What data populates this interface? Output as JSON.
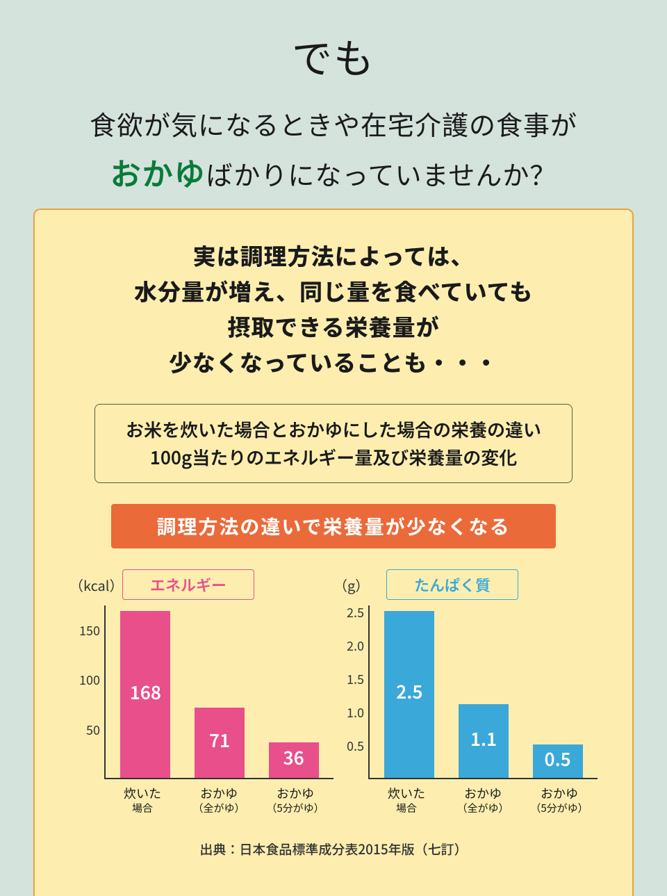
{
  "header": {
    "demo": "でも",
    "line1": "食欲が気になるときや在宅介護の食事が",
    "line2_emph": "おかゆ",
    "line2_rest": "ばかりになっていませんか？"
  },
  "panel": {
    "head_l1": "実は調理方法によっては、",
    "head_l2": "水分量が増え、同じ量を食べていても",
    "head_l3": "摂取できる栄養量が",
    "head_l4": "少なくなっていることも・・・",
    "info_l1": "お米を炊いた場合とおかゆにした場合の栄養の違い",
    "info_l2": "100g当たりのエネルギー量及び栄養量の変化",
    "banner": "調理方法の違いで栄養量が少なくなる",
    "source": "出典：日本食品標準成分表2015年版（七訂）"
  },
  "charts": {
    "xlabels": [
      {
        "l1": "炊いた",
        "l2": "場合"
      },
      {
        "l1": "おかゆ",
        "l2": "（全がゆ）"
      },
      {
        "l1": "おかゆ",
        "l2": "（5分がゆ）"
      }
    ],
    "energy": {
      "title": "エネルギー",
      "title_bg": "#fdeeb0",
      "title_border": "#e84f8b",
      "title_color": "#e84f8b",
      "unit": "（kcal）",
      "bar_color": "#e84f8b",
      "ymax": 175,
      "yticks": [
        50,
        100,
        150
      ],
      "values": [
        168,
        71,
        36
      ],
      "labels": [
        "168",
        "71",
        "36"
      ]
    },
    "protein": {
      "title": "たんぱく質",
      "title_bg": "#fdeeb0",
      "title_border": "#3aa8d8",
      "title_color": "#3aa8d8",
      "unit": "（g）",
      "bar_color": "#3aa8d8",
      "ymax": 2.6,
      "yticks": [
        0.5,
        1.0,
        1.5,
        2.0,
        2.5
      ],
      "ytick_labels": [
        "0.5",
        "1.0",
        "1.5",
        "2.0",
        "2.5"
      ],
      "values": [
        2.5,
        1.1,
        0.5
      ],
      "labels": [
        "2.5",
        "1.1",
        "0.5"
      ]
    }
  },
  "colors": {
    "page_bg": "#d5e3dd",
    "panel_bg": "#fdeeb0",
    "panel_border": "#e8a23c",
    "banner_bg": "#ea6a3a",
    "okayu_green": "#0a7a3a"
  }
}
